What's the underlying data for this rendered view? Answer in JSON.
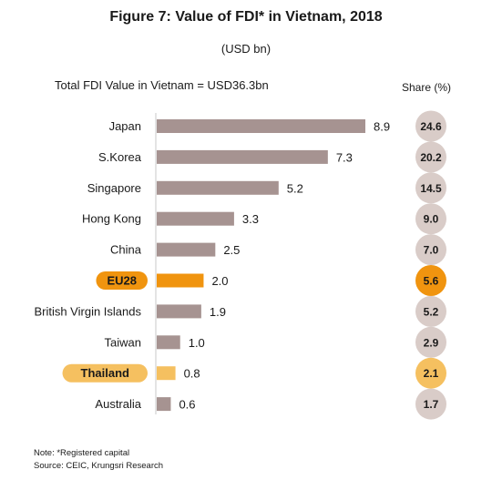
{
  "figure": {
    "title": "Figure 7: Value of FDI* in Vietnam, 2018",
    "subtitle": "(USD bn)",
    "total_label": "Total FDI Value in Vietnam = USD36.3bn",
    "share_header": "Share (%)",
    "note": "Note: *Registered capital",
    "source": "Source: CEIC, Krungsri Research"
  },
  "colors": {
    "bar_default": "#a69391",
    "bar_eu": "#f0940f",
    "bar_thailand": "#f5c060",
    "share_default": "#d9ccc8",
    "share_eu": "#f0940f",
    "share_thailand": "#f5c060",
    "label_eu": "#f0940f",
    "label_thailand": "#f5c060",
    "axis": "#c8c8c8"
  },
  "chart_data": {
    "type": "bar",
    "orientation": "horizontal",
    "title": "Figure 7: Value of FDI* in Vietnam, 2018",
    "subtitle": "(USD bn)",
    "xlim": [
      0,
      8.9
    ],
    "categories": [
      "Japan",
      "S.Korea",
      "Singapore",
      "Hong Kong",
      "China",
      "EU28",
      "British Virgin Islands",
      "Taiwan",
      "Thailand",
      "Australia"
    ],
    "values": [
      8.9,
      7.3,
      5.2,
      3.3,
      2.5,
      2.0,
      1.9,
      1.0,
      0.8,
      0.6
    ],
    "value_labels": [
      "8.9",
      "7.3",
      "5.2",
      "3.3",
      "2.5",
      "2.0",
      "1.9",
      "1.0",
      "0.8",
      "0.6"
    ],
    "shares": [
      "24.6",
      "20.2",
      "14.5",
      "9.0",
      "7.0",
      "5.6",
      "5.2",
      "2.9",
      "2.1",
      "1.7"
    ],
    "highlights": {
      "EU28": "eu",
      "Thailand": "thailand"
    }
  }
}
